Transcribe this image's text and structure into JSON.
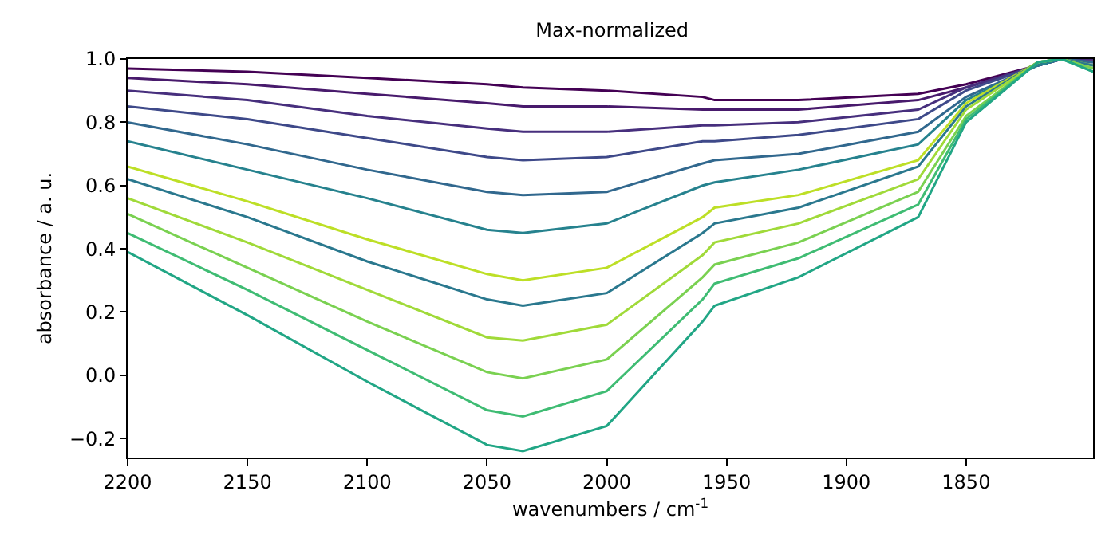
{
  "chart_data": {
    "type": "line",
    "title": "Max-normalized",
    "xlabel": "wavenumbers / cm$^{-1}$",
    "ylabel": "absorbance / a. u.",
    "x": [
      2200,
      2150,
      2100,
      2050,
      2035,
      2000,
      1960,
      1955,
      1920,
      1870,
      1850,
      1820,
      1810,
      1797
    ],
    "series": [
      {
        "color": "#440154",
        "values": [
          0.97,
          0.96,
          0.94,
          0.92,
          0.91,
          0.9,
          0.88,
          0.87,
          0.87,
          0.89,
          0.92,
          0.98,
          1.0,
          1.0
        ]
      },
      {
        "color": "#481a6c",
        "values": [
          0.94,
          0.92,
          0.89,
          0.86,
          0.85,
          0.85,
          0.84,
          0.84,
          0.84,
          0.87,
          0.91,
          0.98,
          1.0,
          1.0
        ]
      },
      {
        "color": "#472f7d",
        "values": [
          0.9,
          0.87,
          0.82,
          0.78,
          0.77,
          0.77,
          0.79,
          0.79,
          0.8,
          0.84,
          0.91,
          0.98,
          1.0,
          1.0
        ]
      },
      {
        "color": "#3e4989",
        "values": [
          0.85,
          0.81,
          0.75,
          0.69,
          0.68,
          0.69,
          0.74,
          0.74,
          0.76,
          0.81,
          0.9,
          0.98,
          1.0,
          0.99
        ]
      },
      {
        "color": "#31688e",
        "values": [
          0.8,
          0.73,
          0.65,
          0.58,
          0.57,
          0.58,
          0.67,
          0.68,
          0.7,
          0.77,
          0.88,
          0.98,
          1.0,
          0.99
        ]
      },
      {
        "color": "#26828e",
        "values": [
          0.74,
          0.65,
          0.56,
          0.46,
          0.45,
          0.48,
          0.6,
          0.61,
          0.65,
          0.73,
          0.87,
          0.98,
          1.0,
          0.98
        ]
      },
      {
        "color": "#bddf26",
        "values": [
          0.66,
          0.55,
          0.43,
          0.32,
          0.3,
          0.34,
          0.5,
          0.53,
          0.57,
          0.68,
          0.86,
          0.99,
          1.0,
          0.98
        ]
      },
      {
        "color": "#2a788e",
        "values": [
          0.62,
          0.5,
          0.36,
          0.24,
          0.22,
          0.26,
          0.45,
          0.48,
          0.53,
          0.66,
          0.85,
          0.99,
          1.0,
          0.98
        ]
      },
      {
        "color": "#a0da39",
        "values": [
          0.56,
          0.42,
          0.27,
          0.12,
          0.11,
          0.16,
          0.38,
          0.42,
          0.48,
          0.62,
          0.84,
          0.99,
          1.0,
          0.97
        ]
      },
      {
        "color": "#7ad151",
        "values": [
          0.51,
          0.34,
          0.17,
          0.01,
          -0.01,
          0.05,
          0.31,
          0.35,
          0.42,
          0.58,
          0.82,
          0.99,
          1.0,
          0.97
        ]
      },
      {
        "color": "#3fbc73",
        "values": [
          0.45,
          0.27,
          0.08,
          -0.11,
          -0.13,
          -0.05,
          0.24,
          0.29,
          0.37,
          0.54,
          0.81,
          0.99,
          1.0,
          0.96
        ]
      },
      {
        "color": "#21a685",
        "values": [
          0.39,
          0.19,
          -0.02,
          -0.22,
          -0.24,
          -0.16,
          0.17,
          0.22,
          0.31,
          0.5,
          0.8,
          0.99,
          1.0,
          0.96
        ]
      }
    ],
    "xlim": [
      2200,
      1797
    ],
    "xticks": [
      2200,
      2150,
      2100,
      2050,
      2000,
      1950,
      1900,
      1850
    ],
    "ylim": [
      -0.26,
      1.0
    ],
    "yticks": [
      {
        "value": -0.2,
        "label": "−0.2"
      },
      {
        "value": 0,
        "label": "0.0"
      },
      {
        "value": 0.2,
        "label": "0.2"
      },
      {
        "value": 0.4,
        "label": "0.4"
      },
      {
        "value": 0.6,
        "label": "0.6"
      },
      {
        "value": 0.8,
        "label": "0.8"
      },
      {
        "value": 1,
        "label": "1.0"
      }
    ],
    "grid": false
  }
}
